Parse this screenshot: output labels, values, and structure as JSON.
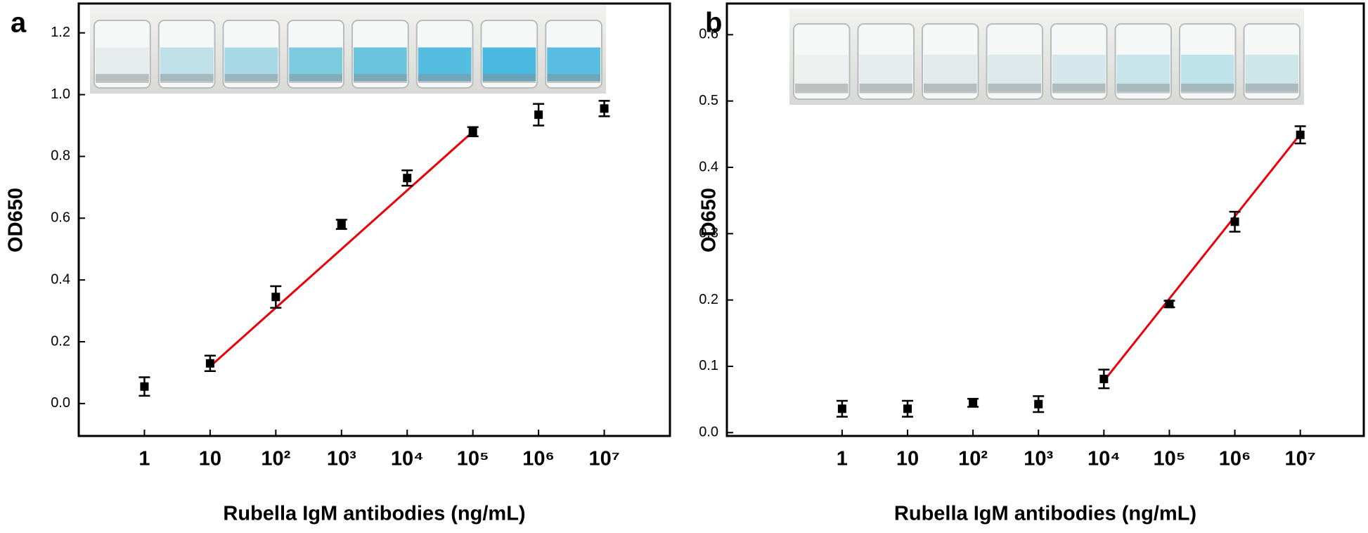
{
  "chart_data": [
    {
      "type": "scatter",
      "panel_label": "a",
      "y_label": "OD650",
      "x_label": "Rubella IgM antibodies (ng/mL)",
      "categories": [
        "1",
        "10",
        "10²",
        "10³",
        "10⁴",
        "10⁵",
        "10⁶",
        "10⁷"
      ],
      "values": [
        0.055,
        0.13,
        0.345,
        0.58,
        0.73,
        0.88,
        0.935,
        0.955
      ],
      "errors": [
        0.03,
        0.025,
        0.035,
        0.015,
        0.025,
        0.015,
        0.035,
        0.025
      ],
      "color": "#000000",
      "fit": {
        "color": "#e8000b",
        "x": [
          "10",
          "10⁵"
        ],
        "values": [
          0.12,
          0.88
        ]
      },
      "ylim": [
        -0.105,
        1.295
      ],
      "yticks": [
        {
          "value": 0,
          "label": "0.0"
        },
        0.2,
        0.4,
        0.6,
        0.8,
        {
          "value": 1,
          "label": "1.0"
        },
        1.2
      ]
    },
    {
      "type": "scatter",
      "panel_label": "b",
      "y_label": "OD650",
      "x_label": "Rubella IgM antibodies (ng/mL)",
      "categories": [
        "1",
        "10",
        "10²",
        "10³",
        "10⁴",
        "10⁵",
        "10⁶",
        "10⁷"
      ],
      "values": [
        0.036,
        0.036,
        0.045,
        0.043,
        0.081,
        0.194,
        0.318,
        0.449
      ],
      "errors": [
        0.012,
        0.012,
        0.006,
        0.012,
        0.014,
        0.005,
        0.015,
        0.013
      ],
      "color": "#000000",
      "fit": {
        "color": "#e8000b",
        "x": [
          "10⁴",
          "10⁷"
        ],
        "values": [
          0.078,
          0.45
        ]
      },
      "ylim": [
        -0.005,
        0.647
      ],
      "yticks": [
        {
          "value": 0,
          "label": "0.0"
        },
        0.1,
        0.2,
        0.3,
        0.4,
        0.5,
        0.6
      ]
    }
  ]
}
